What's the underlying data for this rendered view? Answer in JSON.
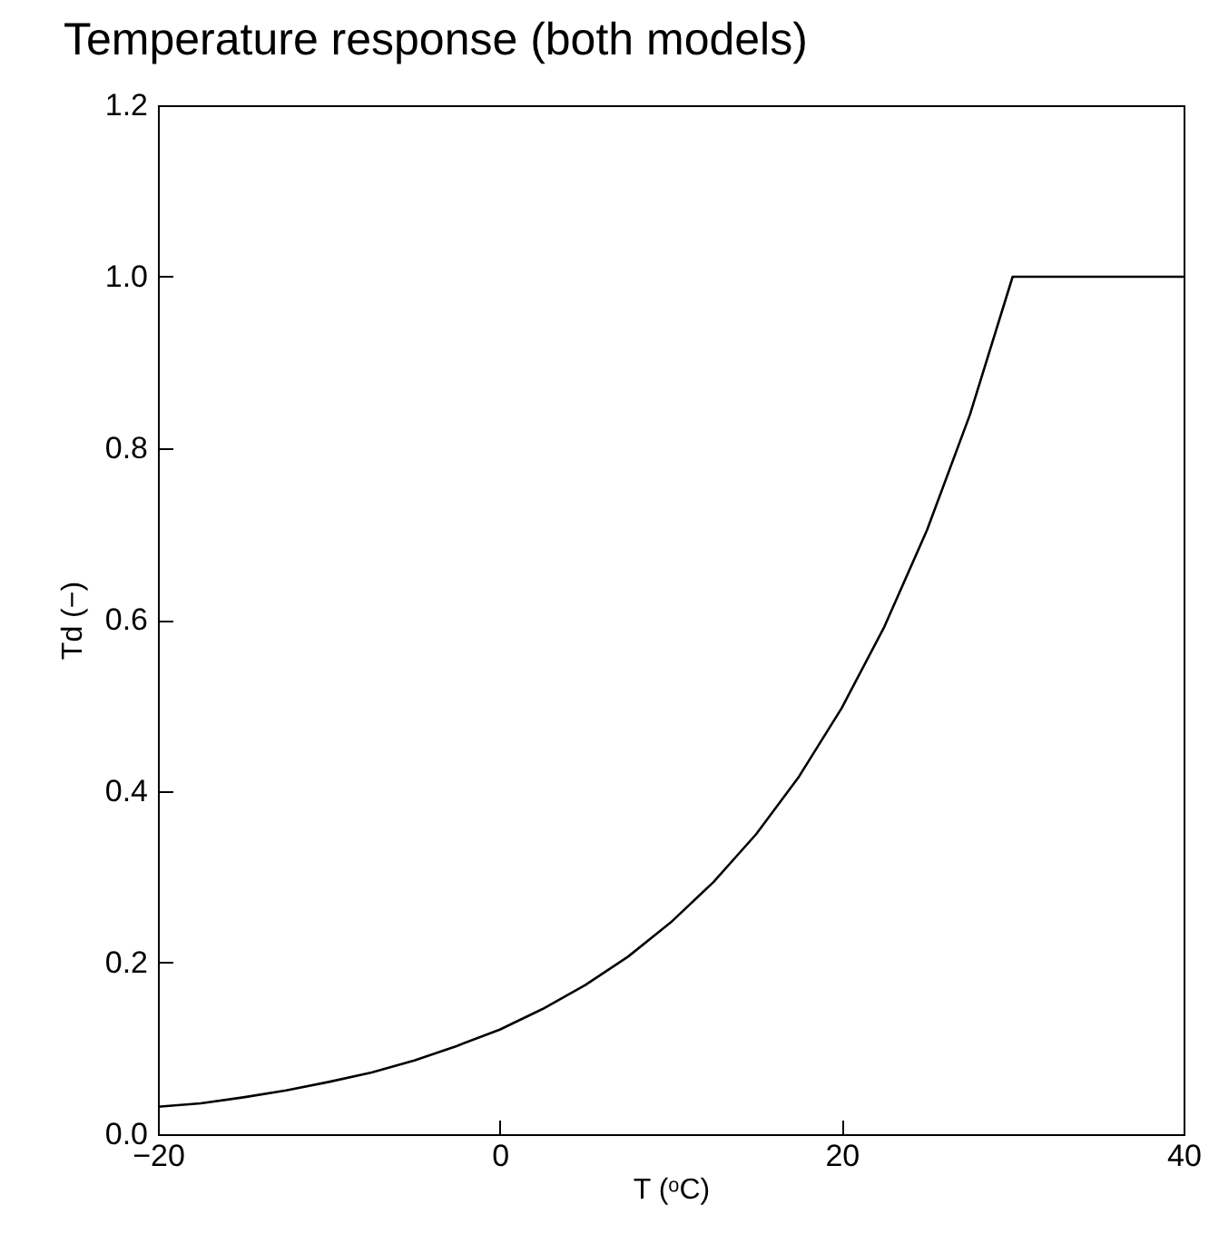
{
  "chart_data": {
    "type": "line",
    "title": "Temperature response (both models)",
    "xlabel": "T (ᵒC)",
    "ylabel": "Td (−)",
    "x": [
      -20,
      -17.5,
      -15,
      -12.5,
      -10,
      -7.5,
      -5,
      -2.5,
      0,
      2.5,
      5,
      7.5,
      10,
      12.5,
      15,
      17.5,
      20,
      22.5,
      25,
      27.5,
      30,
      40
    ],
    "series": [
      {
        "color": "#000000",
        "values": [
          0.032,
          0.036,
          0.043,
          0.051,
          0.061,
          0.072,
          0.086,
          0.103,
          0.122,
          0.146,
          0.174,
          0.207,
          0.247,
          0.294,
          0.35,
          0.417,
          0.497,
          0.592,
          0.705,
          0.839,
          1.0,
          1.0
        ]
      }
    ],
    "xlim": [
      -20,
      40
    ],
    "xticks": [
      {
        "value": -20,
        "label": "−20"
      },
      0,
      20,
      40
    ],
    "ylim": [
      0,
      1.2
    ],
    "yticks": [
      {
        "value": 0,
        "label": "0.0"
      },
      0.2,
      0.4,
      0.6,
      0.8,
      {
        "value": 1,
        "label": "1.0"
      },
      1.2
    ],
    "grid": false,
    "marker": "none",
    "line_style": "solid"
  }
}
